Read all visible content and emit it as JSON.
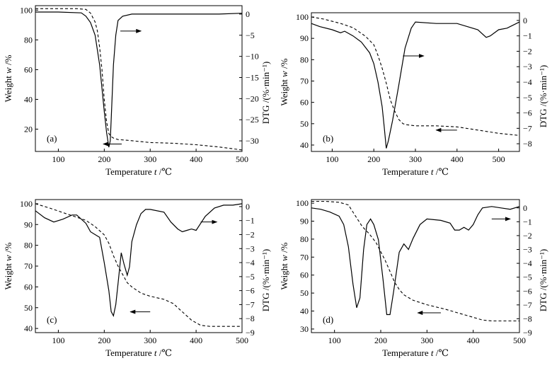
{
  "chart_data": [
    {
      "type": "line",
      "panel_label": "(a)",
      "xlabel_text": "Temperature",
      "xlabel_unit": "t /℃",
      "ylabel_left_text": "Weight",
      "ylabel_left_unit": "w /%",
      "ylabel_right": "DTG /(%·min⁻¹)",
      "xlim": [
        50,
        500
      ],
      "ylim_left": [
        5,
        103
      ],
      "ylim_right": [
        -32.5,
        2
      ],
      "x_ticks": [
        100,
        200,
        300,
        400,
        500
      ],
      "y_left_ticks": [
        20,
        40,
        60,
        80,
        100
      ],
      "y_right_ticks": [
        0,
        -5,
        -10,
        -15,
        -20,
        -25,
        -30
      ],
      "weight_curve": {
        "x": [
          50,
          100,
          140,
          160,
          170,
          180,
          185,
          190,
          195,
          200,
          205,
          210,
          215,
          220,
          230,
          250,
          300,
          350,
          400,
          450,
          500
        ],
        "y": [
          101,
          101,
          101,
          100.5,
          98,
          92,
          86,
          75,
          60,
          40,
          25,
          17,
          15,
          14,
          13,
          12.5,
          11,
          10.5,
          9.5,
          8,
          6
        ]
      },
      "dtg_curve": {
        "x": [
          50,
          100,
          150,
          160,
          170,
          180,
          190,
          200,
          205,
          210,
          213,
          215,
          220,
          225,
          230,
          240,
          260,
          300,
          350,
          400,
          450,
          500
        ],
        "y": [
          0.5,
          0.5,
          0.3,
          -0.5,
          -2,
          -5,
          -12,
          -23,
          -28,
          -31.5,
          -30,
          -25,
          -12,
          -5,
          -1.5,
          -0.5,
          0,
          0,
          0,
          0,
          0,
          0.2
        ]
      },
      "arrows": [
        {
          "text": "",
          "points_to": "right axis (DTG)",
          "x_from": 235,
          "x_to": 280,
          "y_right": -4
        },
        {
          "text": "",
          "points_to": "left axis (Weight)",
          "x_from": 238,
          "x_to": 198,
          "y_left": 10
        }
      ]
    },
    {
      "type": "line",
      "panel_label": "(b)",
      "xlabel_text": "Temperature",
      "xlabel_unit": "t /℃",
      "ylabel_left_text": "Weight",
      "ylabel_left_unit": "w /%",
      "ylabel_right": "DTG /(%·min⁻¹)",
      "xlim": [
        50,
        550
      ],
      "ylim_left": [
        37,
        102
      ],
      "ylim_right": [
        -8.5,
        0.5
      ],
      "x_ticks": [
        100,
        200,
        300,
        400,
        500
      ],
      "y_left_ticks": [
        40,
        50,
        60,
        70,
        80,
        90,
        100
      ],
      "y_right_ticks": [
        0,
        -1,
        -2,
        -3,
        -4,
        -5,
        -6,
        -7,
        -8
      ],
      "weight_curve": {
        "x": [
          50,
          80,
          120,
          150,
          180,
          200,
          210,
          220,
          230,
          240,
          250,
          260,
          270,
          280,
          300,
          350,
          400,
          450,
          500,
          550
        ],
        "y": [
          100,
          99,
          97,
          95,
          91,
          87,
          82,
          76,
          69,
          61,
          56,
          52,
          50,
          49.5,
          49,
          49,
          48.5,
          47,
          45.5,
          44.5
        ]
      },
      "dtg_curve": {
        "x": [
          50,
          70,
          100,
          120,
          130,
          150,
          170,
          190,
          200,
          210,
          220,
          225,
          230,
          235,
          245,
          260,
          275,
          290,
          300,
          350,
          400,
          450,
          470,
          480,
          500,
          520,
          550
        ],
        "y": [
          -0.2,
          -0.4,
          -0.6,
          -0.8,
          -0.7,
          -1,
          -1.4,
          -2.1,
          -2.8,
          -4,
          -5.6,
          -6.9,
          -8.3,
          -7.8,
          -6.5,
          -4.2,
          -1.8,
          -0.5,
          -0.1,
          -0.2,
          -0.2,
          -0.6,
          -1.1,
          -1,
          -0.6,
          -0.5,
          -0.1
        ]
      },
      "arrows": [
        {
          "text": "",
          "points_to": "right axis (DTG)",
          "x_from": 270,
          "x_to": 320,
          "y_right": -2.3
        },
        {
          "text": "",
          "points_to": "left axis (Weight)",
          "x_from": 400,
          "x_to": 350,
          "y_left": 47
        }
      ]
    },
    {
      "type": "line",
      "panel_label": "(c)",
      "xlabel_text": "Temperature",
      "xlabel_unit": "t /℃",
      "ylabel_left_text": "Weight",
      "ylabel_left_unit": "w /%",
      "ylabel_right": "DTG /(%·min⁻¹)",
      "xlim": [
        50,
        500
      ],
      "ylim_left": [
        38,
        102
      ],
      "ylim_right": [
        -9,
        0.5
      ],
      "x_ticks": [
        100,
        200,
        300,
        400,
        500
      ],
      "y_left_ticks": [
        40,
        50,
        60,
        70,
        80,
        90,
        100
      ],
      "y_right_ticks": [
        0,
        -1,
        -2,
        -3,
        -4,
        -5,
        -6,
        -7,
        -8,
        -9
      ],
      "weight_curve": {
        "x": [
          50,
          80,
          120,
          160,
          180,
          200,
          210,
          220,
          230,
          240,
          250,
          260,
          280,
          300,
          330,
          350,
          370,
          390,
          410,
          430,
          450,
          500
        ],
        "y": [
          100,
          98,
          95,
          92,
          89,
          85,
          81,
          75,
          70,
          66,
          62,
          60,
          57,
          55.5,
          54,
          52,
          48,
          44,
          41.5,
          41,
          41,
          41
        ]
      },
      "dtg_curve": {
        "x": [
          50,
          70,
          90,
          110,
          130,
          140,
          160,
          170,
          180,
          190,
          200,
          210,
          215,
          220,
          225,
          230,
          237,
          243,
          250,
          255,
          260,
          270,
          280,
          290,
          300,
          330,
          345,
          360,
          370,
          380,
          390,
          400,
          410,
          420,
          440,
          460,
          480,
          500
        ],
        "y": [
          -0.3,
          -0.8,
          -1.1,
          -0.9,
          -0.6,
          -0.6,
          -1.2,
          -1.8,
          -2,
          -2.2,
          -4,
          -6,
          -7.5,
          -7.8,
          -7,
          -5.5,
          -3.3,
          -4.1,
          -4.9,
          -4.3,
          -2.5,
          -1.3,
          -0.5,
          -0.2,
          -0.2,
          -0.4,
          -1.1,
          -1.6,
          -1.8,
          -1.7,
          -1.6,
          -1.7,
          -1.2,
          -0.7,
          -0.1,
          0.1,
          0.1,
          0.2
        ]
      },
      "arrows": [
        {
          "text": "",
          "points_to": "right axis (DTG)",
          "x_from": 410,
          "x_to": 445,
          "y_right": -1.1
        },
        {
          "text": "",
          "points_to": "left axis (Weight)",
          "x_from": 300,
          "x_to": 257,
          "y_left": 48
        }
      ]
    },
    {
      "type": "line",
      "panel_label": "(d)",
      "xlabel_text": "Temperature",
      "xlabel_unit": "t /℃",
      "ylabel_left_text": "Weight",
      "ylabel_left_unit": "w /%",
      "ylabel_right": "DTG /(%·min⁻¹)",
      "xlim": [
        50,
        500
      ],
      "ylim_left": [
        28,
        102
      ],
      "ylim_right": [
        -9,
        0.6
      ],
      "x_ticks": [
        100,
        200,
        300,
        400,
        500
      ],
      "y_left_ticks": [
        30,
        40,
        50,
        60,
        70,
        80,
        90,
        100
      ],
      "y_right_ticks": [
        0,
        -1,
        -2,
        -3,
        -4,
        -5,
        -6,
        -7,
        -8,
        -9
      ],
      "weight_curve": {
        "x": [
          50,
          80,
          110,
          130,
          145,
          160,
          175,
          190,
          200,
          210,
          220,
          230,
          240,
          250,
          270,
          300,
          340,
          360,
          380,
          400,
          420,
          440,
          470,
          500
        ],
        "y": [
          101,
          101,
          100.5,
          99,
          93,
          87,
          83,
          78,
          73,
          68,
          62,
          56,
          52,
          49,
          46,
          43.5,
          41,
          39.5,
          38,
          36.5,
          35,
          34.5,
          34.5,
          34.5
        ]
      },
      "dtg_curve": {
        "x": [
          50,
          70,
          90,
          110,
          120,
          130,
          140,
          148,
          155,
          163,
          170,
          178,
          185,
          195,
          205,
          213,
          220,
          228,
          240,
          250,
          260,
          270,
          285,
          300,
          330,
          350,
          360,
          370,
          380,
          390,
          400,
          410,
          420,
          440,
          460,
          480,
          500
        ],
        "y": [
          0,
          -0.1,
          -0.3,
          -0.6,
          -1.2,
          -2.8,
          -5.5,
          -7.2,
          -6.5,
          -3,
          -1.2,
          -0.8,
          -1.2,
          -2.3,
          -5.2,
          -7.7,
          -7.7,
          -6,
          -3.2,
          -2.6,
          -3,
          -2.2,
          -1.2,
          -0.8,
          -0.9,
          -1.1,
          -1.6,
          -1.6,
          -1.4,
          -1.6,
          -1.2,
          -0.5,
          0,
          0.1,
          0,
          -0.1,
          0.1
        ]
      },
      "arrows": [
        {
          "text": "",
          "points_to": "right axis (DTG)",
          "x_from": 440,
          "x_to": 480,
          "y_right": -0.8
        },
        {
          "text": "",
          "points_to": "left axis (Weight)",
          "x_from": 330,
          "x_to": 280,
          "y_left": 39
        }
      ]
    }
  ]
}
